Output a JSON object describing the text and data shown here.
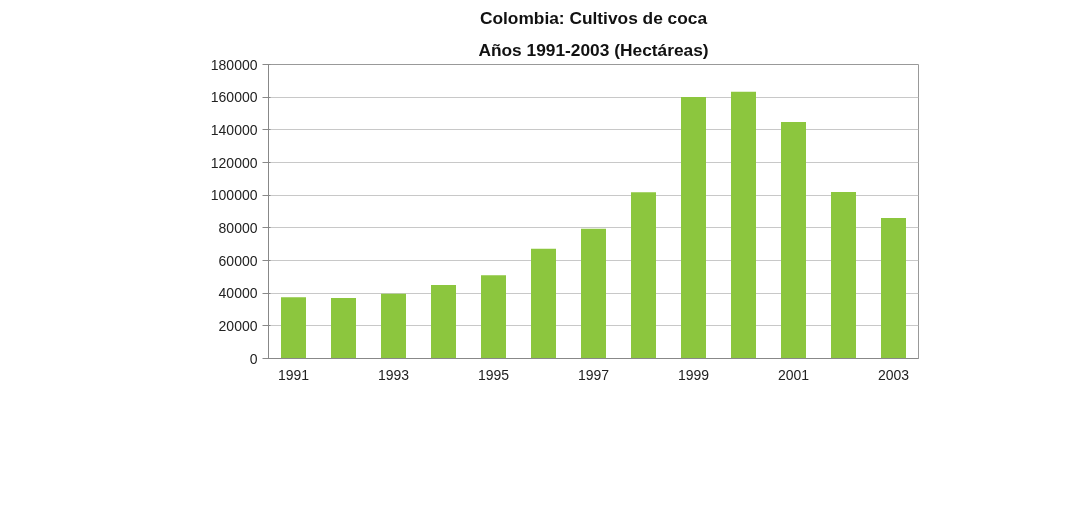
{
  "chart_data": {
    "type": "bar",
    "title": "Colombia: Cultivos de coca",
    "subtitle": "Años 1991-2003 (Hectáreas)",
    "categories": [
      "1991",
      null,
      "1993",
      null,
      "1995",
      null,
      "1997",
      null,
      "1999",
      null,
      "2001",
      null,
      "2003"
    ],
    "values": [
      37500,
      37100,
      39700,
      45000,
      50900,
      67200,
      79400,
      101800,
      160100,
      163300,
      144800,
      102000,
      86000
    ],
    "color": "#8cc63e",
    "ylim": [
      0,
      180000
    ],
    "yticks": [
      0,
      20000,
      40000,
      60000,
      80000,
      100000,
      120000,
      140000,
      160000,
      180000
    ],
    "grid": "y"
  }
}
